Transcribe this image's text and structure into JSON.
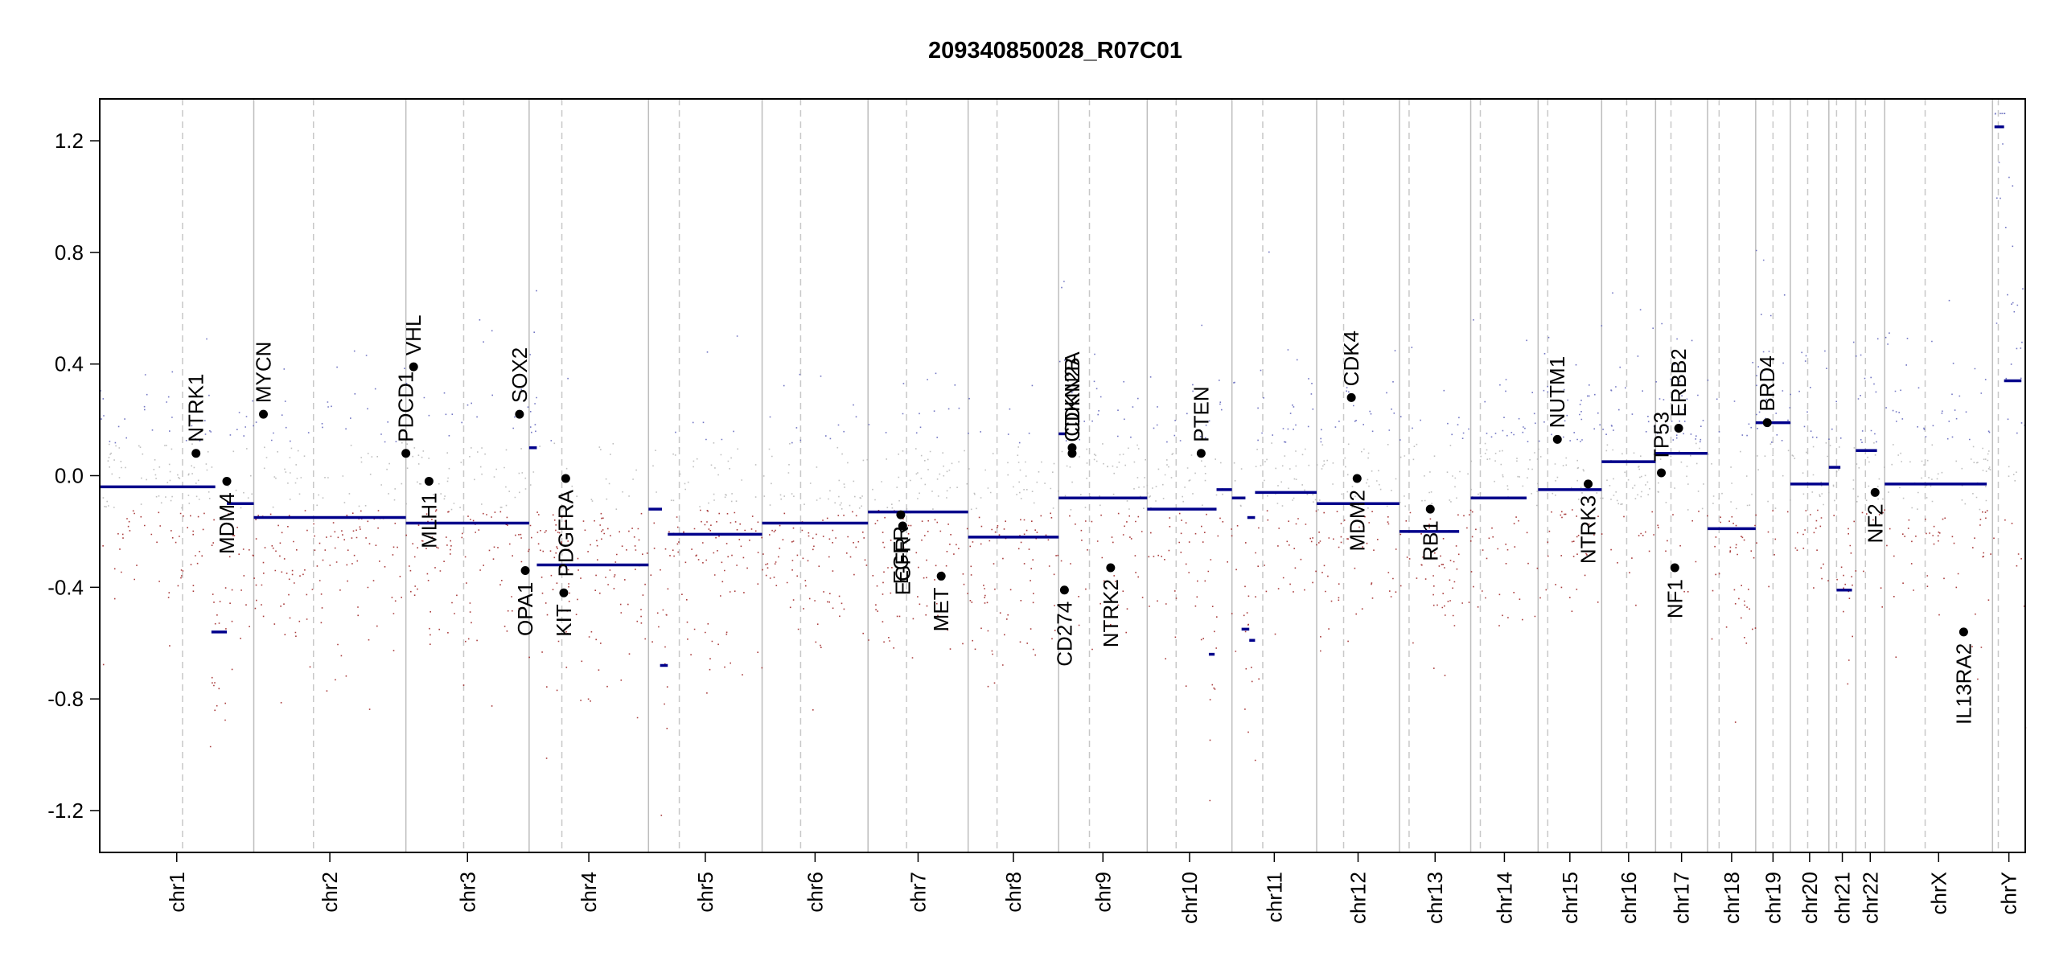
{
  "chart_data": {
    "type": "scatter",
    "title": "209340850028_R07C01",
    "xlabel": "",
    "ylabel": "",
    "ylim": [
      -1.35,
      1.35
    ],
    "yticks": [
      -1.2,
      -0.8,
      -0.4,
      0.0,
      0.4,
      0.8,
      1.2
    ],
    "ytick_labels": [
      "-1.2",
      "-0.8",
      "-0.4",
      "0.0",
      "0.4",
      "0.8",
      "1.2"
    ],
    "grid": false,
    "colors": {
      "gain": "#5b5fb8",
      "neutral": "#b4b4b4",
      "loss": "#9b1c1c",
      "segment": "#00008b",
      "gene": "#000000",
      "separator": "#bdbdbd",
      "centromere": "#c8c8c8"
    },
    "chromosomes": [
      {
        "name": "chr1",
        "start": 0.0,
        "end": 0.08,
        "centromere": 0.043
      },
      {
        "name": "chr2",
        "start": 0.08,
        "end": 0.159,
        "centromere": 0.111
      },
      {
        "name": "chr3",
        "start": 0.159,
        "end": 0.223,
        "centromere": 0.189
      },
      {
        "name": "chr4",
        "start": 0.223,
        "end": 0.285,
        "centromere": 0.24
      },
      {
        "name": "chr5",
        "start": 0.285,
        "end": 0.344,
        "centromere": 0.301
      },
      {
        "name": "chr6",
        "start": 0.344,
        "end": 0.399,
        "centromere": 0.364
      },
      {
        "name": "chr7",
        "start": 0.399,
        "end": 0.451,
        "centromere": 0.419
      },
      {
        "name": "chr8",
        "start": 0.451,
        "end": 0.498,
        "centromere": 0.466
      },
      {
        "name": "chr9",
        "start": 0.498,
        "end": 0.544,
        "centromere": 0.514
      },
      {
        "name": "chr10",
        "start": 0.544,
        "end": 0.588,
        "centromere": 0.559
      },
      {
        "name": "chr11",
        "start": 0.588,
        "end": 0.632,
        "centromere": 0.604
      },
      {
        "name": "chr12",
        "start": 0.632,
        "end": 0.675,
        "centromere": 0.646
      },
      {
        "name": "chr13",
        "start": 0.675,
        "end": 0.712,
        "centromere": 0.68
      },
      {
        "name": "chr14",
        "start": 0.712,
        "end": 0.747,
        "centromere": 0.717
      },
      {
        "name": "chr15",
        "start": 0.747,
        "end": 0.78,
        "centromere": 0.752
      },
      {
        "name": "chr16",
        "start": 0.78,
        "end": 0.808,
        "centromere": 0.793
      },
      {
        "name": "chr17",
        "start": 0.808,
        "end": 0.835,
        "centromere": 0.816
      },
      {
        "name": "chr18",
        "start": 0.835,
        "end": 0.86,
        "centromere": 0.841
      },
      {
        "name": "chr19",
        "start": 0.86,
        "end": 0.878,
        "centromere": 0.869
      },
      {
        "name": "chr20",
        "start": 0.878,
        "end": 0.898,
        "centromere": 0.887
      },
      {
        "name": "chr21",
        "start": 0.898,
        "end": 0.912,
        "centromere": 0.902
      },
      {
        "name": "chr22",
        "start": 0.912,
        "end": 0.927,
        "centromere": 0.917
      },
      {
        "name": "chrX",
        "start": 0.927,
        "end": 0.983,
        "centromere": 0.948
      },
      {
        "name": "chrY",
        "start": 0.983,
        "end": 1.0,
        "centromere": 0.986
      }
    ],
    "segments": [
      {
        "start": 0.0,
        "end": 0.06,
        "y": -0.04
      },
      {
        "start": 0.058,
        "end": 0.066,
        "y": -0.56
      },
      {
        "start": 0.066,
        "end": 0.08,
        "y": -0.1
      },
      {
        "start": 0.08,
        "end": 0.159,
        "y": -0.15
      },
      {
        "start": 0.159,
        "end": 0.223,
        "y": -0.17
      },
      {
        "start": 0.223,
        "end": 0.227,
        "y": 0.1
      },
      {
        "start": 0.227,
        "end": 0.285,
        "y": -0.32
      },
      {
        "start": 0.285,
        "end": 0.292,
        "y": -0.12
      },
      {
        "start": 0.291,
        "end": 0.295,
        "y": -0.68
      },
      {
        "start": 0.295,
        "end": 0.344,
        "y": -0.21
      },
      {
        "start": 0.344,
        "end": 0.399,
        "y": -0.17
      },
      {
        "start": 0.399,
        "end": 0.451,
        "y": -0.13
      },
      {
        "start": 0.451,
        "end": 0.498,
        "y": -0.22
      },
      {
        "start": 0.498,
        "end": 0.502,
        "y": 0.15
      },
      {
        "start": 0.498,
        "end": 0.544,
        "y": -0.08
      },
      {
        "start": 0.544,
        "end": 0.58,
        "y": -0.12
      },
      {
        "start": 0.576,
        "end": 0.579,
        "y": -0.64
      },
      {
        "start": 0.58,
        "end": 0.588,
        "y": -0.05
      },
      {
        "start": 0.588,
        "end": 0.595,
        "y": -0.08
      },
      {
        "start": 0.593,
        "end": 0.597,
        "y": -0.55
      },
      {
        "start": 0.596,
        "end": 0.6,
        "y": -0.15
      },
      {
        "start": 0.597,
        "end": 0.6,
        "y": -0.59
      },
      {
        "start": 0.6,
        "end": 0.632,
        "y": -0.06
      },
      {
        "start": 0.632,
        "end": 0.675,
        "y": -0.1
      },
      {
        "start": 0.675,
        "end": 0.706,
        "y": -0.2
      },
      {
        "start": 0.712,
        "end": 0.741,
        "y": -0.08
      },
      {
        "start": 0.747,
        "end": 0.78,
        "y": -0.05
      },
      {
        "start": 0.78,
        "end": 0.808,
        "y": 0.05
      },
      {
        "start": 0.808,
        "end": 0.835,
        "y": 0.08
      },
      {
        "start": 0.835,
        "end": 0.86,
        "y": -0.19
      },
      {
        "start": 0.86,
        "end": 0.878,
        "y": 0.19
      },
      {
        "start": 0.878,
        "end": 0.898,
        "y": -0.03
      },
      {
        "start": 0.898,
        "end": 0.904,
        "y": 0.03
      },
      {
        "start": 0.902,
        "end": 0.91,
        "y": -0.41
      },
      {
        "start": 0.912,
        "end": 0.923,
        "y": 0.09
      },
      {
        "start": 0.927,
        "end": 0.98,
        "y": -0.03
      },
      {
        "start": 0.984,
        "end": 0.989,
        "y": 1.25
      },
      {
        "start": 0.989,
        "end": 0.998,
        "y": 0.34
      }
    ],
    "genes": [
      {
        "name": "NTRK1",
        "x": 0.05,
        "y": 0.08,
        "label": "above"
      },
      {
        "name": "MDM4",
        "x": 0.066,
        "y": -0.02,
        "label": "below"
      },
      {
        "name": "MYCN",
        "x": 0.085,
        "y": 0.22,
        "label": "above"
      },
      {
        "name": "PDCD1",
        "x": 0.159,
        "y": 0.08,
        "label": "above"
      },
      {
        "name": "VHL",
        "x": 0.163,
        "y": 0.39,
        "label": "above"
      },
      {
        "name": "MLH1",
        "x": 0.171,
        "y": -0.02,
        "label": "below"
      },
      {
        "name": "SOX2",
        "x": 0.218,
        "y": 0.22,
        "label": "above"
      },
      {
        "name": "OPA1",
        "x": 0.221,
        "y": -0.34,
        "label": "below"
      },
      {
        "name": "KIT",
        "x": 0.241,
        "y": -0.42,
        "label": "below"
      },
      {
        "name": "PDGFRA",
        "x": 0.242,
        "y": -0.01,
        "label": "below"
      },
      {
        "name": "EGFR",
        "x": 0.416,
        "y": -0.14,
        "label": "below"
      },
      {
        "name": "EGFR",
        "x": 0.417,
        "y": -0.18,
        "label": "below"
      },
      {
        "name": "MET",
        "x": 0.437,
        "y": -0.36,
        "label": "below"
      },
      {
        "name": "CD274",
        "x": 0.501,
        "y": -0.41,
        "label": "below"
      },
      {
        "name": "CDKN2A",
        "x": 0.505,
        "y": 0.1,
        "label": "above"
      },
      {
        "name": "CDKN2B",
        "x": 0.505,
        "y": 0.08,
        "label": "above"
      },
      {
        "name": "NTRK2",
        "x": 0.525,
        "y": -0.33,
        "label": "below"
      },
      {
        "name": "PTEN",
        "x": 0.572,
        "y": 0.08,
        "label": "above"
      },
      {
        "name": "CDK4",
        "x": 0.65,
        "y": 0.28,
        "label": "above"
      },
      {
        "name": "MDM2",
        "x": 0.653,
        "y": -0.01,
        "label": "below"
      },
      {
        "name": "RB1",
        "x": 0.691,
        "y": -0.12,
        "label": "below"
      },
      {
        "name": "NUTM1",
        "x": 0.757,
        "y": 0.13,
        "label": "above"
      },
      {
        "name": "NTRK3",
        "x": 0.773,
        "y": -0.03,
        "label": "below"
      },
      {
        "name": "TP53",
        "x": 0.811,
        "y": 0.01,
        "label": "above"
      },
      {
        "name": "ERBB2",
        "x": 0.82,
        "y": 0.17,
        "label": "above"
      },
      {
        "name": "NF1",
        "x": 0.818,
        "y": -0.33,
        "label": "below"
      },
      {
        "name": "BRD4",
        "x": 0.866,
        "y": 0.19,
        "label": "above"
      },
      {
        "name": "NF2",
        "x": 0.922,
        "y": -0.06,
        "label": "below"
      },
      {
        "name": "IL13RA2",
        "x": 0.968,
        "y": -0.56,
        "label": "below"
      }
    ]
  }
}
